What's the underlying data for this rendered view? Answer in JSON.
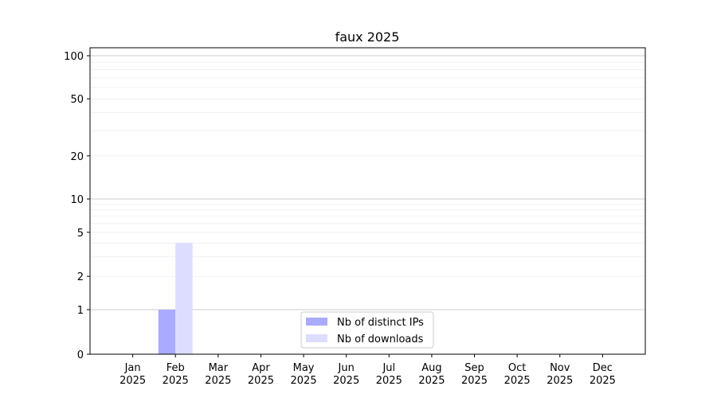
{
  "chart_data": {
    "type": "bar",
    "title": "faux 2025",
    "xlabel": "",
    "ylabel": "",
    "yscale": "symlog",
    "ylim": [
      0,
      114
    ],
    "yticks": [
      0,
      1,
      2,
      5,
      10,
      20,
      50,
      100
    ],
    "ytick_labels": [
      "0",
      "1",
      "2",
      "5",
      "10",
      "20",
      "50",
      "100"
    ],
    "categories": [
      "Jan\n2025",
      "Feb\n2025",
      "Mar\n2025",
      "Apr\n2025",
      "May\n2025",
      "Jun\n2025",
      "Jul\n2025",
      "Aug\n2025",
      "Sep\n2025",
      "Oct\n2025",
      "Nov\n2025",
      "Dec\n2025"
    ],
    "series": [
      {
        "name": "Nb of distinct IPs",
        "color": "#aaaaff",
        "values": [
          0,
          1,
          0,
          0,
          0,
          0,
          0,
          0,
          0,
          0,
          0,
          0
        ]
      },
      {
        "name": "Nb of downloads",
        "color": "#ddddff",
        "values": [
          0,
          4,
          0,
          0,
          0,
          0,
          0,
          0,
          0,
          0,
          0,
          0
        ]
      }
    ],
    "grid": true,
    "legend_position": "lower-center"
  }
}
